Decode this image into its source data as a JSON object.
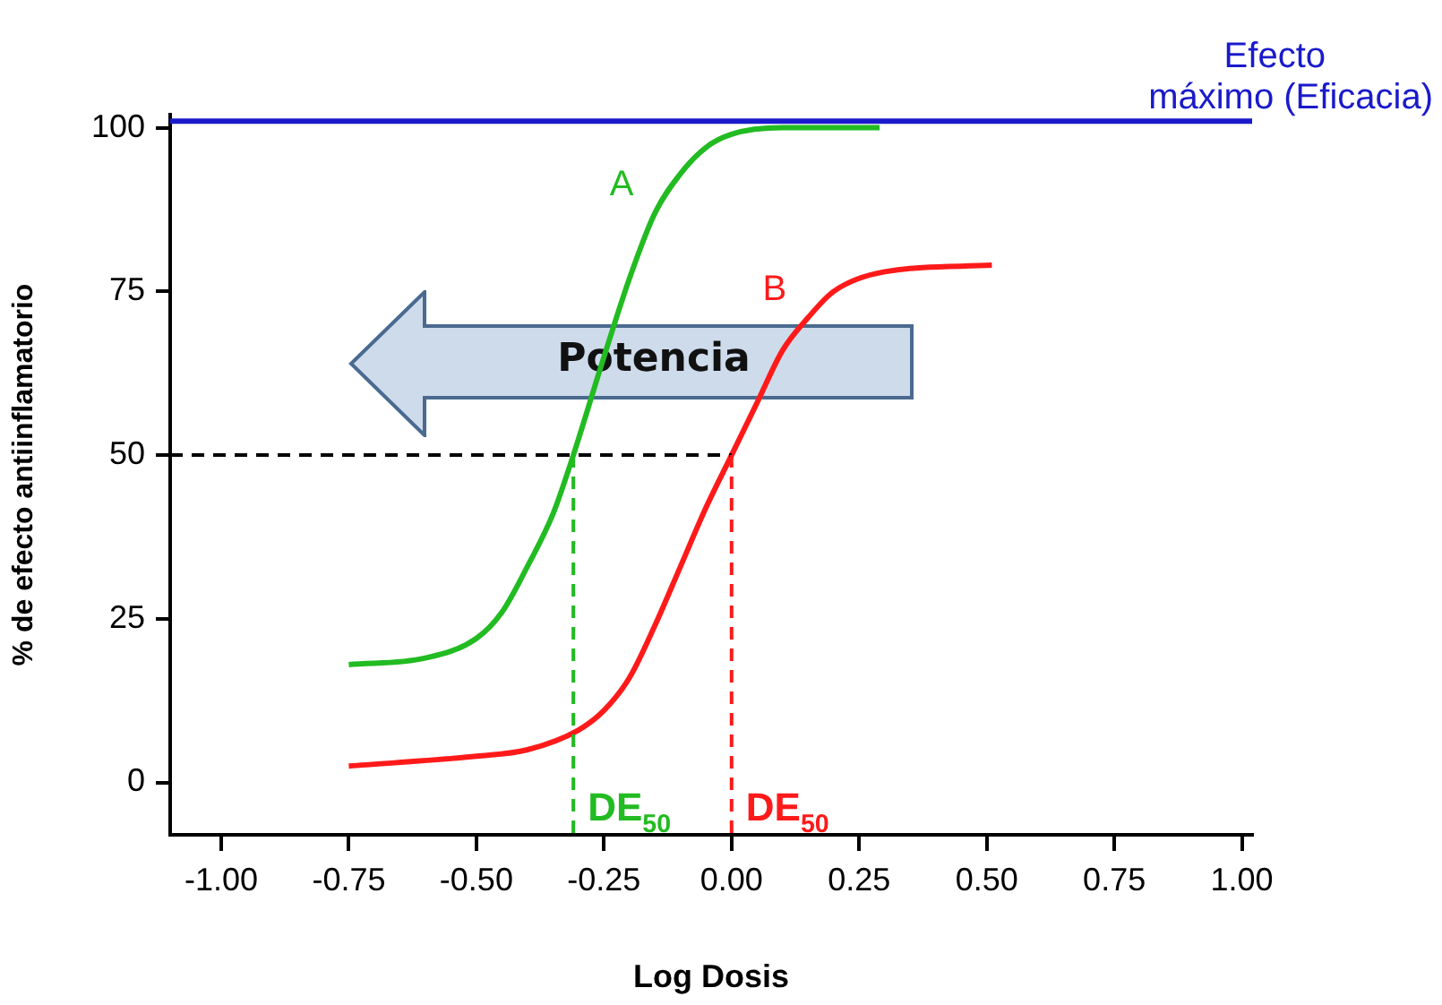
{
  "chart_data": {
    "type": "line",
    "xlabel": "Log Dosis",
    "ylabel": "% de efecto antiinflamatorio",
    "xlim": [
      -1.1,
      1.02
    ],
    "ylim": [
      -8,
      102
    ],
    "xticks": [
      {
        "value": -1,
        "label": "-1.00"
      },
      {
        "value": -0.75,
        "label": "-0.75"
      },
      {
        "value": -0.5,
        "label": "-0.50"
      },
      {
        "value": -0.25,
        "label": "-0.25"
      },
      {
        "value": 0,
        "label": "0.00"
      },
      {
        "value": 0.25,
        "label": "0.25"
      },
      {
        "value": 0.5,
        "label": "0.50"
      },
      {
        "value": 0.75,
        "label": "0.75"
      },
      {
        "value": 1,
        "label": "1.00"
      }
    ],
    "yticks": [
      0,
      25,
      50,
      75,
      100
    ],
    "grid": false,
    "legend": false,
    "marker": "none",
    "line_style": "solid",
    "series": [
      {
        "name": "A",
        "color": "#22bb22",
        "x": [
          -0.75,
          -0.6,
          -0.5,
          -0.45,
          -0.4,
          -0.35,
          -0.31,
          -0.25,
          -0.2,
          -0.15,
          -0.1,
          -0.05,
          0,
          0.1,
          0.29
        ],
        "values": [
          18,
          19,
          22,
          26,
          33,
          41,
          50,
          65,
          77,
          87,
          93,
          97,
          99,
          100,
          100
        ]
      },
      {
        "name": "B",
        "color": "#ff1a1a",
        "x": [
          -0.75,
          -0.5,
          -0.4,
          -0.3,
          -0.25,
          -0.2,
          -0.15,
          -0.1,
          -0.05,
          0,
          0.05,
          0.1,
          0.15,
          0.2,
          0.3,
          0.51
        ],
        "values": [
          2.5,
          4,
          5,
          8,
          11,
          16,
          24,
          33,
          42,
          50,
          58,
          66,
          71,
          75,
          78,
          79
        ]
      }
    ],
    "ref_lines": [
      {
        "axis": "y",
        "value": 101,
        "label": "Efecto máximo (Eficacia)",
        "color": "#1a1acc",
        "line_style": "solid"
      },
      {
        "axis": "y",
        "value": 50,
        "label": null,
        "color": "#000000",
        "line_style": "dashed"
      },
      {
        "axis": "x",
        "value": -0.31,
        "label": "DE$_{50}$",
        "color": "#22bb22",
        "line_style": "dashed"
      },
      {
        "axis": "x",
        "value": 0,
        "label": "DE$_{50}$",
        "color": "#ff1a1a",
        "line_style": "dashed"
      }
    ],
    "annotations": [
      "Potencia"
    ]
  }
}
